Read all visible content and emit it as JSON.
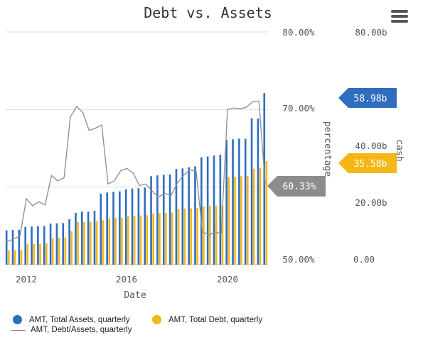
{
  "header": {
    "title": "Debt vs. Assets",
    "menu_icon": "hamburger-menu-icon"
  },
  "legend": {
    "assets": "AMT, Total Assets, quarterly",
    "debt": "AMT, Total Debt, quarterly",
    "ratio": "AMT, Debt/Assets, quarterly"
  },
  "colors": {
    "assets": "#2f6dbe",
    "debt": "#f5b716",
    "ratio": "#8c8c8c",
    "grid": "#dddddd",
    "text": "#555555"
  },
  "chart_data": {
    "type": "bar",
    "xlabel": "Date",
    "x_ticks": [
      "2012",
      "2016",
      "2020"
    ],
    "y_left": {
      "label": "percentage",
      "range": [
        0.5,
        0.8
      ],
      "ticks": [
        "80.00%",
        "70.00%",
        "50.00%"
      ]
    },
    "y_right": {
      "label": "cash",
      "range": [
        0,
        80
      ],
      "ticks": [
        "80.00b",
        "40.00b",
        "20.00b",
        "0.00"
      ]
    },
    "callouts": {
      "assets": "58.98b",
      "debt": "35.58b",
      "ratio": "60.33%"
    },
    "x": [
      2011.25,
      2011.5,
      2011.75,
      2012.0,
      2012.25,
      2012.5,
      2012.75,
      2013.0,
      2013.25,
      2013.5,
      2013.75,
      2014.0,
      2014.25,
      2014.5,
      2014.75,
      2015.0,
      2015.25,
      2015.5,
      2015.75,
      2016.0,
      2016.25,
      2016.5,
      2016.75,
      2017.0,
      2017.25,
      2017.5,
      2017.75,
      2018.0,
      2018.25,
      2018.5,
      2018.75,
      2019.0,
      2019.25,
      2019.5,
      2019.75,
      2020.0,
      2020.25,
      2020.5,
      2020.75,
      2021.0,
      2021.25,
      2021.5
    ],
    "series": [
      {
        "name": "AMT, Total Assets, quarterly",
        "values": [
          11.8,
          11.9,
          12.0,
          13.0,
          13.1,
          13.2,
          13.3,
          14.1,
          14.2,
          14.3,
          15.6,
          17.8,
          18.2,
          18.2,
          18.5,
          24.4,
          24.8,
          25.0,
          25.2,
          25.9,
          26.2,
          26.3,
          26.5,
          30.4,
          30.7,
          30.9,
          31.0,
          32.9,
          33.1,
          33.5,
          33.8,
          36.9,
          37.2,
          37.5,
          37.8,
          42.9,
          43.1,
          43.3,
          43.3,
          50.3,
          50.2,
          58.98
        ]
      },
      {
        "name": "AMT, Total Debt, quarterly",
        "values": [
          4.9,
          5.0,
          5.0,
          7.0,
          7.1,
          7.2,
          7.3,
          9.1,
          9.2,
          9.4,
          11.5,
          14.6,
          14.7,
          14.7,
          14.9,
          15.3,
          15.9,
          16.0,
          16.1,
          16.7,
          16.8,
          16.9,
          17.0,
          17.6,
          17.7,
          17.8,
          17.9,
          19.1,
          19.3,
          19.4,
          19.5,
          20.0,
          20.2,
          20.3,
          20.4,
          30.0,
          30.2,
          30.4,
          30.5,
          33.0,
          33.2,
          35.58
        ]
      },
      {
        "name": "AMT, Debt/Assets, quarterly",
        "values": [
          0.53,
          0.533,
          0.537,
          0.585,
          0.576,
          0.581,
          0.577,
          0.615,
          0.608,
          0.612,
          0.69,
          0.704,
          0.696,
          0.673,
          0.676,
          0.68,
          0.604,
          0.608,
          0.621,
          0.624,
          0.618,
          0.602,
          0.604,
          0.595,
          0.587,
          0.592,
          0.589,
          0.605,
          0.615,
          0.622,
          0.621,
          0.543,
          0.538,
          0.542,
          0.54,
          0.7,
          0.702,
          0.701,
          0.703,
          0.71,
          0.711,
          0.6033
        ]
      }
    ]
  }
}
